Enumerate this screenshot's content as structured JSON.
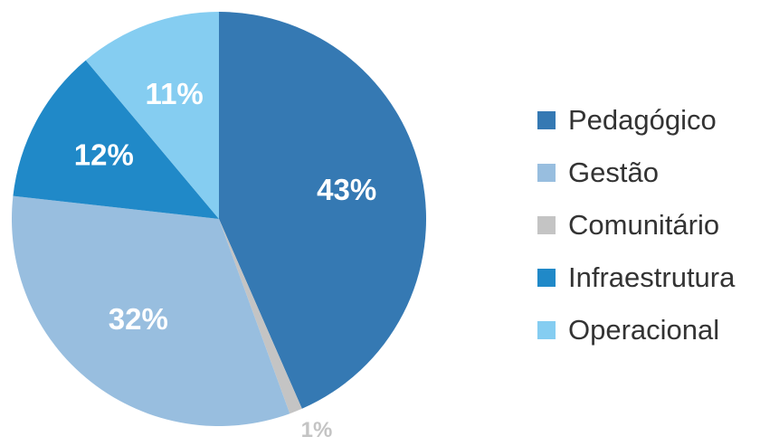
{
  "chart_data": {
    "type": "pie",
    "slices": [
      {
        "name": "Pedagógico",
        "value": 43,
        "label": "43%",
        "color": "#3579b3"
      },
      {
        "name": "Comunitário",
        "value": 1,
        "label": "1%",
        "color": "#c4c4c4"
      },
      {
        "name": "Gestão",
        "value": 32,
        "label": "32%",
        "color": "#98bedf"
      },
      {
        "name": "Infraestrutura",
        "value": 12,
        "label": "12%",
        "color": "#2089c8"
      },
      {
        "name": "Operacional",
        "value": 11,
        "label": "11%",
        "color": "#85cdf1"
      }
    ],
    "legend": {
      "position": "right",
      "entries": [
        {
          "label": "Pedagógico",
          "color": "#3579b3"
        },
        {
          "label": "Gestão",
          "color": "#98bedf"
        },
        {
          "label": "Comunitário",
          "color": "#c4c4c4"
        },
        {
          "label": "Infraestrutura",
          "color": "#2089c8"
        },
        {
          "label": "Operacional",
          "color": "#85cdf1"
        }
      ]
    },
    "start": "12 o'clock",
    "direction": "clockwise"
  }
}
